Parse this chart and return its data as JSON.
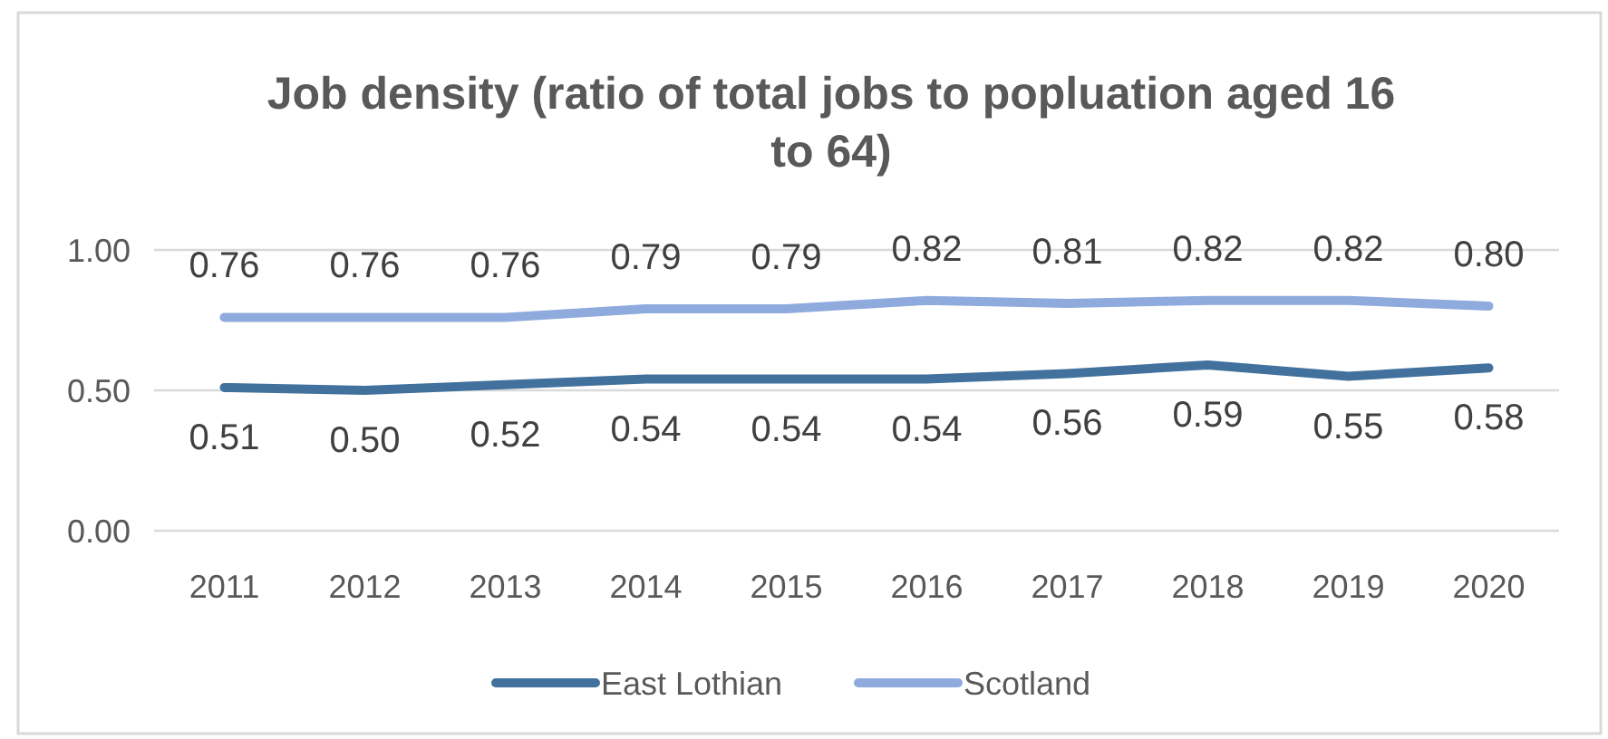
{
  "chart_data": {
    "type": "line",
    "title": "Job density (ratio of total jobs to popluation aged 16 to 64)",
    "categories": [
      "2011",
      "2012",
      "2013",
      "2014",
      "2015",
      "2016",
      "2017",
      "2018",
      "2019",
      "2020"
    ],
    "series": [
      {
        "name": "East Lothian",
        "color": "#41719c",
        "values": [
          0.51,
          0.5,
          0.52,
          0.54,
          0.54,
          0.54,
          0.56,
          0.59,
          0.55,
          0.58
        ],
        "value_labels": [
          "0.51",
          "0.50",
          "0.52",
          "0.54",
          "0.54",
          "0.54",
          "0.56",
          "0.59",
          "0.55",
          "0.58"
        ]
      },
      {
        "name": "Scotland",
        "color": "#8faadc",
        "values": [
          0.76,
          0.76,
          0.76,
          0.79,
          0.79,
          0.82,
          0.81,
          0.82,
          0.82,
          0.8
        ],
        "value_labels": [
          "0.76",
          "0.76",
          "0.76",
          "0.79",
          "0.79",
          "0.82",
          "0.81",
          "0.82",
          "0.82",
          "0.80"
        ]
      }
    ],
    "ylim": [
      0,
      1
    ],
    "yticks": [
      {
        "value": 0,
        "label": "0.00"
      },
      {
        "value": 0.5,
        "label": "0.50"
      },
      {
        "value": 1,
        "label": "1.00"
      }
    ],
    "grid": "y",
    "legend": "bottom",
    "marker": "none",
    "line_style": "solid"
  }
}
